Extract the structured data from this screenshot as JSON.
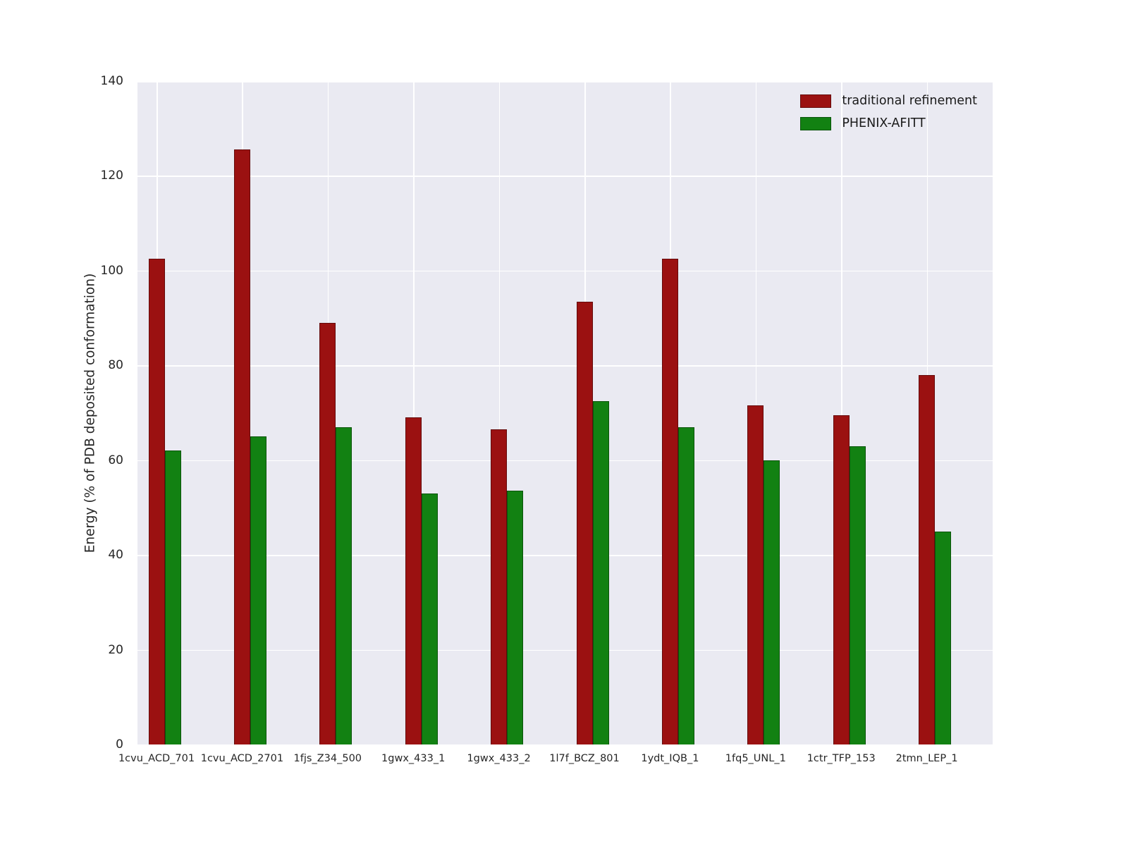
{
  "chart_data": {
    "type": "bar",
    "title": "",
    "xlabel": "",
    "ylabel": "Energy (% of PDB deposited conformation)",
    "ylim": [
      0,
      140
    ],
    "yticks": [
      0,
      20,
      40,
      60,
      80,
      100,
      120,
      140
    ],
    "grid": true,
    "legend_position": "upper right",
    "plot_background": "#eaeaf2",
    "grid_color": "#ffffff",
    "categories": [
      "1cvu_ACD_701",
      "1cvu_ACD_2701",
      "1fjs_Z34_500",
      "1gwx_433_1",
      "1gwx_433_2",
      "1l7f_BCZ_801",
      "1ydt_IQB_1",
      "1fq5_UNL_1",
      "1ctr_TFP_153",
      "2tmn_LEP_1"
    ],
    "series": [
      {
        "name": "traditional refinement",
        "color": "#9b1111",
        "values": [
          102.5,
          125.5,
          89,
          69,
          66.5,
          93.5,
          102.5,
          71.5,
          69.5,
          78
        ]
      },
      {
        "name": "PHENIX-AFITT",
        "color": "#128112",
        "values": [
          62,
          65,
          67,
          53,
          53.5,
          72.5,
          67,
          60,
          63,
          45
        ]
      }
    ]
  }
}
